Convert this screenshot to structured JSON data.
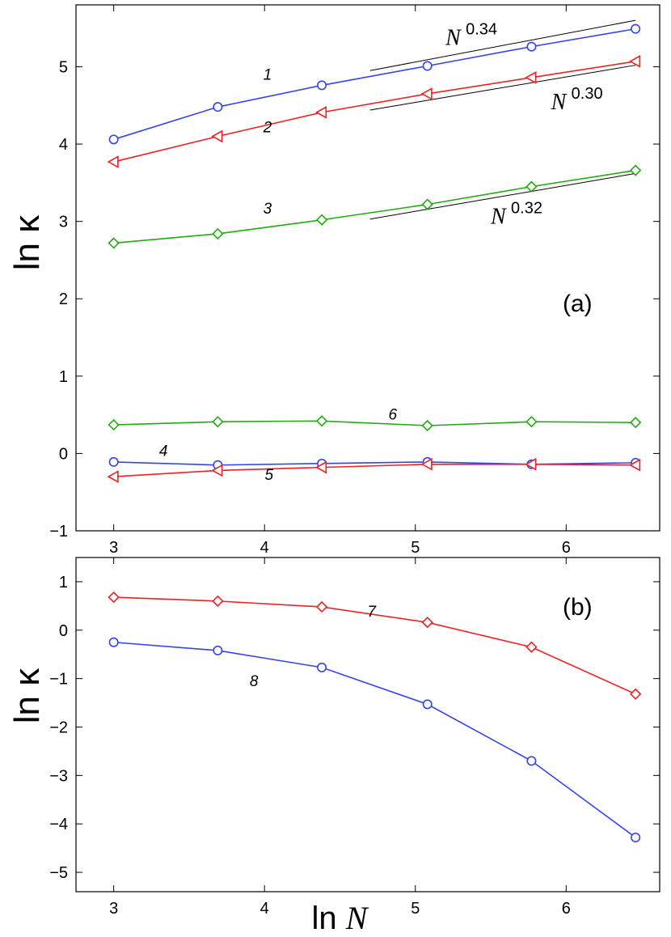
{
  "chart_data": [
    {
      "panel": "a",
      "type": "line",
      "panel_label": "(a)",
      "ylabel": "ln κ",
      "xlim": [
        2.75,
        6.62
      ],
      "ylim": [
        -1,
        5.8
      ],
      "xticks": [
        "3",
        "4",
        "5",
        "6"
      ],
      "yticks": [
        "−1",
        "0",
        "1",
        "2",
        "3",
        "4",
        "5"
      ],
      "x": [
        3.0,
        3.69,
        4.38,
        5.08,
        5.77,
        6.46
      ],
      "series": [
        {
          "id": "1",
          "label": "1",
          "color": "#3344ee",
          "marker": "circle",
          "values": [
            4.06,
            4.48,
            4.76,
            5.01,
            5.26,
            5.49
          ],
          "label_at": [
            4.02,
            4.83
          ]
        },
        {
          "id": "2",
          "label": "2",
          "color": "#ee2222",
          "marker": "triangle-left",
          "values": [
            3.77,
            4.1,
            4.41,
            4.65,
            4.86,
            5.07
          ],
          "label_at": [
            4.02,
            4.15
          ]
        },
        {
          "id": "3",
          "label": "3",
          "color": "#22aa11",
          "marker": "diamond",
          "values": [
            2.72,
            2.84,
            3.02,
            3.22,
            3.45,
            3.66
          ],
          "label_at": [
            4.02,
            3.1
          ]
        },
        {
          "id": "6",
          "label": "6",
          "color": "#22aa11",
          "marker": "diamond",
          "values": [
            0.37,
            0.41,
            0.42,
            0.36,
            0.41,
            0.4
          ],
          "label_at": [
            4.85,
            0.44
          ]
        },
        {
          "id": "4",
          "label": "4",
          "color": "#3344ee",
          "marker": "circle",
          "values": [
            -0.11,
            -0.15,
            -0.13,
            -0.11,
            -0.14,
            -0.12
          ],
          "label_at": [
            3.33,
            -0.03
          ]
        },
        {
          "id": "5",
          "label": "5",
          "color": "#ee2222",
          "marker": "triangle-left",
          "values": [
            -0.3,
            -0.22,
            -0.18,
            -0.14,
            -0.14,
            -0.15
          ],
          "label_at": [
            4.03,
            -0.34
          ]
        }
      ],
      "fit_lines": [
        {
          "label_base": "N",
          "label_exp": "0.34",
          "x": [
            4.7,
            6.46
          ],
          "y": [
            4.95,
            5.6
          ],
          "label_at": [
            5.2,
            5.28
          ]
        },
        {
          "label_base": "N",
          "label_exp": "0.30",
          "x": [
            4.7,
            6.46
          ],
          "y": [
            4.44,
            5.02
          ],
          "label_at": [
            5.9,
            4.45
          ]
        },
        {
          "label_base": "N",
          "label_exp": "0.32",
          "x": [
            4.7,
            6.46
          ],
          "y": [
            3.03,
            3.62
          ],
          "label_at": [
            5.5,
            2.97
          ]
        }
      ]
    },
    {
      "panel": "b",
      "type": "line",
      "panel_label": "(b)",
      "ylabel": "ln κ",
      "xlabel_prefix": "ln",
      "xlabel_var": "N",
      "xlim": [
        2.75,
        6.62
      ],
      "ylim": [
        -5.4,
        1.5
      ],
      "xticks": [
        "3",
        "4",
        "5",
        "6"
      ],
      "yticks": [
        "−5",
        "−4",
        "−3",
        "−2",
        "−1",
        "0",
        "1"
      ],
      "x": [
        3.0,
        3.69,
        4.38,
        5.08,
        5.77,
        6.46
      ],
      "series": [
        {
          "id": "7",
          "label": "7",
          "color": "#ee2222",
          "marker": "diamond",
          "values": [
            0.68,
            0.6,
            0.48,
            0.16,
            -0.35,
            -1.32
          ],
          "label_at": [
            4.71,
            0.28
          ]
        },
        {
          "id": "8",
          "label": "8",
          "color": "#3344ee",
          "marker": "circle",
          "values": [
            -0.25,
            -0.42,
            -0.77,
            -1.53,
            -2.7,
            -4.28
          ],
          "label_at": [
            3.93,
            -1.16
          ]
        }
      ]
    }
  ]
}
